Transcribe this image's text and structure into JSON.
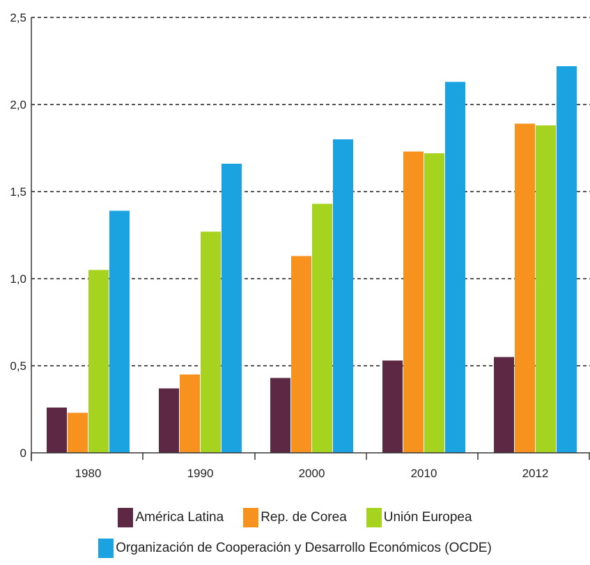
{
  "chart_data": {
    "type": "bar",
    "title": "",
    "xlabel": "",
    "ylabel": "",
    "categories": [
      "1980",
      "1990",
      "2000",
      "2010",
      "2012"
    ],
    "series": [
      {
        "name": "América Latina",
        "color": "#5c2843",
        "values": [
          0.26,
          0.37,
          0.43,
          0.53,
          0.55
        ]
      },
      {
        "name": "Rep. de Corea",
        "color": "#f7921e",
        "values": [
          0.23,
          0.45,
          1.13,
          1.73,
          1.89
        ]
      },
      {
        "name": "Unión Europea",
        "color": "#a6d31f",
        "values": [
          1.05,
          1.27,
          1.43,
          1.72,
          1.88
        ]
      },
      {
        "name": "Organización de Cooperación y Desarrollo Económicos (OCDE)",
        "color": "#1aa3e0",
        "values": [
          1.39,
          1.66,
          1.8,
          2.13,
          2.22
        ]
      }
    ],
    "ylim": [
      0,
      2.5
    ],
    "yticks": [
      0,
      0.5,
      1.0,
      1.5,
      2.0,
      2.5
    ],
    "ytick_labels": [
      "0",
      "0,5",
      "1,0",
      "1,5",
      "2,0",
      "2,5"
    ],
    "grid": true,
    "legend_position": "bottom"
  }
}
